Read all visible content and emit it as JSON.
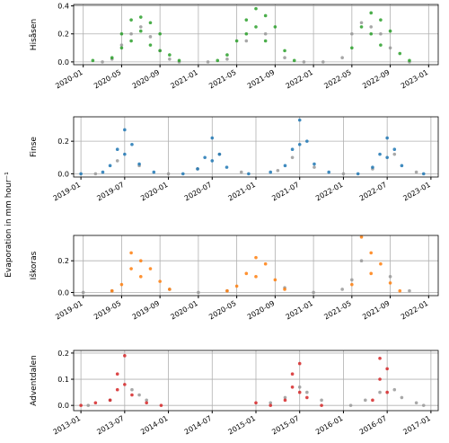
{
  "ylabel": "Evaporation in mm hour⁻¹",
  "chart_data": [
    {
      "type": "scatter",
      "ylabel": "Hisåsen",
      "xlim": [
        "2019-12",
        "2023-02"
      ],
      "ylim": [
        -0.02,
        0.41
      ],
      "xticks": [
        "2020-01",
        "2020-05",
        "2020-09",
        "2021-01",
        "2021-05",
        "2021-09",
        "2022-01",
        "2022-05",
        "2022-09",
        "2023-01"
      ],
      "yticks": [
        {
          "value": 0,
          "label": "0.0"
        },
        0.2,
        0.4
      ],
      "grid": true,
      "series": [
        {
          "color": "#999999",
          "x": [
            "2020-03",
            "2020-04",
            "2020-05",
            "2020-06",
            "2020-07",
            "2020-08",
            "2020-09",
            "2020-10",
            "2020-11",
            "2021-02",
            "2021-04",
            "2021-06",
            "2021-08",
            "2021-10",
            "2021-12",
            "2022-02",
            "2022-04",
            "2022-05",
            "2022-06",
            "2022-07",
            "2022-08",
            "2022-09",
            "2022-11"
          ],
          "values": [
            0.0,
            0.02,
            0.12,
            0.2,
            0.25,
            0.18,
            0.08,
            0.02,
            0.0,
            0.0,
            0.02,
            0.15,
            0.2,
            0.03,
            0.0,
            0.0,
            0.03,
            0.2,
            0.28,
            0.25,
            0.2,
            0.1,
            0.0
          ]
        },
        {
          "color": "#2ca02c",
          "x": [
            "2020-02",
            "2020-04",
            "2020-05",
            "2020-05",
            "2020-06",
            "2020-06",
            "2020-07",
            "2020-07",
            "2020-08",
            "2020-08",
            "2020-09",
            "2020-09",
            "2020-10",
            "2020-11",
            "2021-03",
            "2021-04",
            "2021-05",
            "2021-06",
            "2021-06",
            "2021-07",
            "2021-07",
            "2021-08",
            "2021-08",
            "2021-09",
            "2021-10",
            "2021-11",
            "2022-05",
            "2022-06",
            "2022-07",
            "2022-07",
            "2022-08",
            "2022-08",
            "2022-09",
            "2022-10",
            "2022-11"
          ],
          "values": [
            0.01,
            0.03,
            0.1,
            0.2,
            0.3,
            0.15,
            0.32,
            0.22,
            0.28,
            0.12,
            0.2,
            0.08,
            0.05,
            0.01,
            0.01,
            0.05,
            0.15,
            0.3,
            0.2,
            0.38,
            0.25,
            0.33,
            0.15,
            0.25,
            0.08,
            0.01,
            0.1,
            0.25,
            0.35,
            0.2,
            0.3,
            0.12,
            0.22,
            0.06,
            0.01
          ]
        }
      ]
    },
    {
      "type": "scatter",
      "ylabel": "Finse",
      "xlim": [
        "2018-12",
        "2023-02"
      ],
      "ylim": [
        -0.02,
        0.35
      ],
      "xticks": [
        "2019-01",
        "2019-07",
        "2020-01",
        "2020-07",
        "2021-01",
        "2021-07",
        "2022-01",
        "2022-07",
        "2023-01"
      ],
      "yticks": [
        {
          "value": 0,
          "label": "0.0"
        },
        0.2
      ],
      "grid": true,
      "series": [
        {
          "color": "#999999",
          "x": [
            "2019-03",
            "2019-06",
            "2019-09",
            "2020-01",
            "2020-05",
            "2020-08",
            "2020-11",
            "2021-04",
            "2021-06",
            "2021-09",
            "2022-01",
            "2022-05",
            "2022-08",
            "2022-11"
          ],
          "values": [
            0.0,
            0.08,
            0.05,
            0.0,
            0.03,
            0.12,
            0.01,
            0.02,
            0.1,
            0.04,
            0.0,
            0.03,
            0.12,
            0.01
          ]
        },
        {
          "color": "#1f77b4",
          "x": [
            "2019-01",
            "2019-04",
            "2019-05",
            "2019-06",
            "2019-07",
            "2019-07",
            "2019-08",
            "2019-09",
            "2019-11",
            "2020-03",
            "2020-05",
            "2020-06",
            "2020-07",
            "2020-07",
            "2020-08",
            "2020-09",
            "2020-12",
            "2021-03",
            "2021-05",
            "2021-06",
            "2021-07",
            "2021-07",
            "2021-08",
            "2021-09",
            "2021-11",
            "2022-03",
            "2022-05",
            "2022-06",
            "2022-07",
            "2022-07",
            "2022-08",
            "2022-09",
            "2022-12"
          ],
          "values": [
            0.0,
            0.01,
            0.05,
            0.15,
            0.27,
            0.12,
            0.18,
            0.06,
            0.01,
            0.0,
            0.03,
            0.1,
            0.22,
            0.08,
            0.12,
            0.04,
            0.0,
            0.01,
            0.05,
            0.15,
            0.33,
            0.18,
            0.2,
            0.06,
            0.01,
            0.0,
            0.04,
            0.12,
            0.22,
            0.1,
            0.15,
            0.05,
            0.0
          ]
        }
      ]
    },
    {
      "type": "scatter",
      "ylabel": "Iškoras",
      "xlim": [
        "2018-12",
        "2022-02"
      ],
      "ylim": [
        -0.02,
        0.36
      ],
      "xticks": [
        "2019-01",
        "2019-05",
        "2019-09",
        "2020-01",
        "2020-05",
        "2020-09",
        "2021-01",
        "2021-05",
        "2021-09",
        "2022-01"
      ],
      "yticks": [
        {
          "value": 0,
          "label": "0.0"
        },
        0.2
      ],
      "grid": true,
      "series": [
        {
          "color": "#999999",
          "x": [
            "2019-01",
            "2019-04",
            "2019-10",
            "2020-01",
            "2020-04",
            "2020-10",
            "2021-01",
            "2021-04",
            "2021-05",
            "2021-06",
            "2021-09",
            "2021-11"
          ],
          "values": [
            0.0,
            0.01,
            0.02,
            0.0,
            0.01,
            0.03,
            0.0,
            0.02,
            0.08,
            0.2,
            0.1,
            0.01
          ]
        },
        {
          "color": "#ff7f0e",
          "x": [
            "2019-04",
            "2019-05",
            "2019-06",
            "2019-06",
            "2019-07",
            "2019-07",
            "2019-08",
            "2019-09",
            "2019-10",
            "2020-04",
            "2020-05",
            "2020-06",
            "2020-07",
            "2020-07",
            "2020-08",
            "2020-09",
            "2020-10",
            "2021-05",
            "2021-06",
            "2021-07",
            "2021-07",
            "2021-08",
            "2021-09",
            "2021-10"
          ],
          "values": [
            0.01,
            0.05,
            0.15,
            0.25,
            0.2,
            0.1,
            0.15,
            0.07,
            0.02,
            0.01,
            0.04,
            0.12,
            0.22,
            0.1,
            0.18,
            0.08,
            0.02,
            0.05,
            0.35,
            0.25,
            0.12,
            0.18,
            0.06,
            0.01
          ]
        }
      ]
    },
    {
      "type": "scatter",
      "ylabel": "Adventdalen",
      "xlim": [
        "2012-12",
        "2017-02"
      ],
      "ylim": [
        -0.02,
        0.21
      ],
      "xticks": [
        "2013-01",
        "2013-07",
        "2014-01",
        "2014-07",
        "2015-01",
        "2015-07",
        "2016-01",
        "2016-07",
        "2017-01"
      ],
      "yticks": [
        {
          "value": 0,
          "label": "0.0"
        },
        0.1,
        0.2
      ],
      "grid": true,
      "series": [
        {
          "color": "#999999",
          "x": [
            "2013-02",
            "2013-05",
            "2013-08",
            "2013-09",
            "2013-10",
            "2015-03",
            "2015-05",
            "2015-07",
            "2015-08",
            "2015-10",
            "2016-02",
            "2016-04",
            "2016-06",
            "2016-08",
            "2016-09",
            "2016-11",
            "2016-12"
          ],
          "values": [
            0.0,
            0.02,
            0.06,
            0.04,
            0.02,
            0.01,
            0.03,
            0.07,
            0.05,
            0.02,
            0.0,
            0.02,
            0.05,
            0.06,
            0.03,
            0.01,
            0.0
          ]
        },
        {
          "color": "#d62728",
          "x": [
            "2013-01",
            "2013-03",
            "2013-05",
            "2013-06",
            "2013-06",
            "2013-07",
            "2013-07",
            "2013-08",
            "2013-10",
            "2013-12",
            "2015-01",
            "2015-03",
            "2015-05",
            "2015-06",
            "2015-06",
            "2015-07",
            "2015-07",
            "2015-08",
            "2015-10",
            "2016-05",
            "2016-06",
            "2016-06",
            "2016-07",
            "2016-07"
          ],
          "values": [
            0.0,
            0.01,
            0.02,
            0.06,
            0.12,
            0.19,
            0.08,
            0.04,
            0.01,
            0.0,
            0.01,
            0.0,
            0.02,
            0.07,
            0.12,
            0.16,
            0.05,
            0.03,
            0.0,
            0.02,
            0.1,
            0.18,
            0.14,
            0.05
          ]
        }
      ]
    }
  ]
}
